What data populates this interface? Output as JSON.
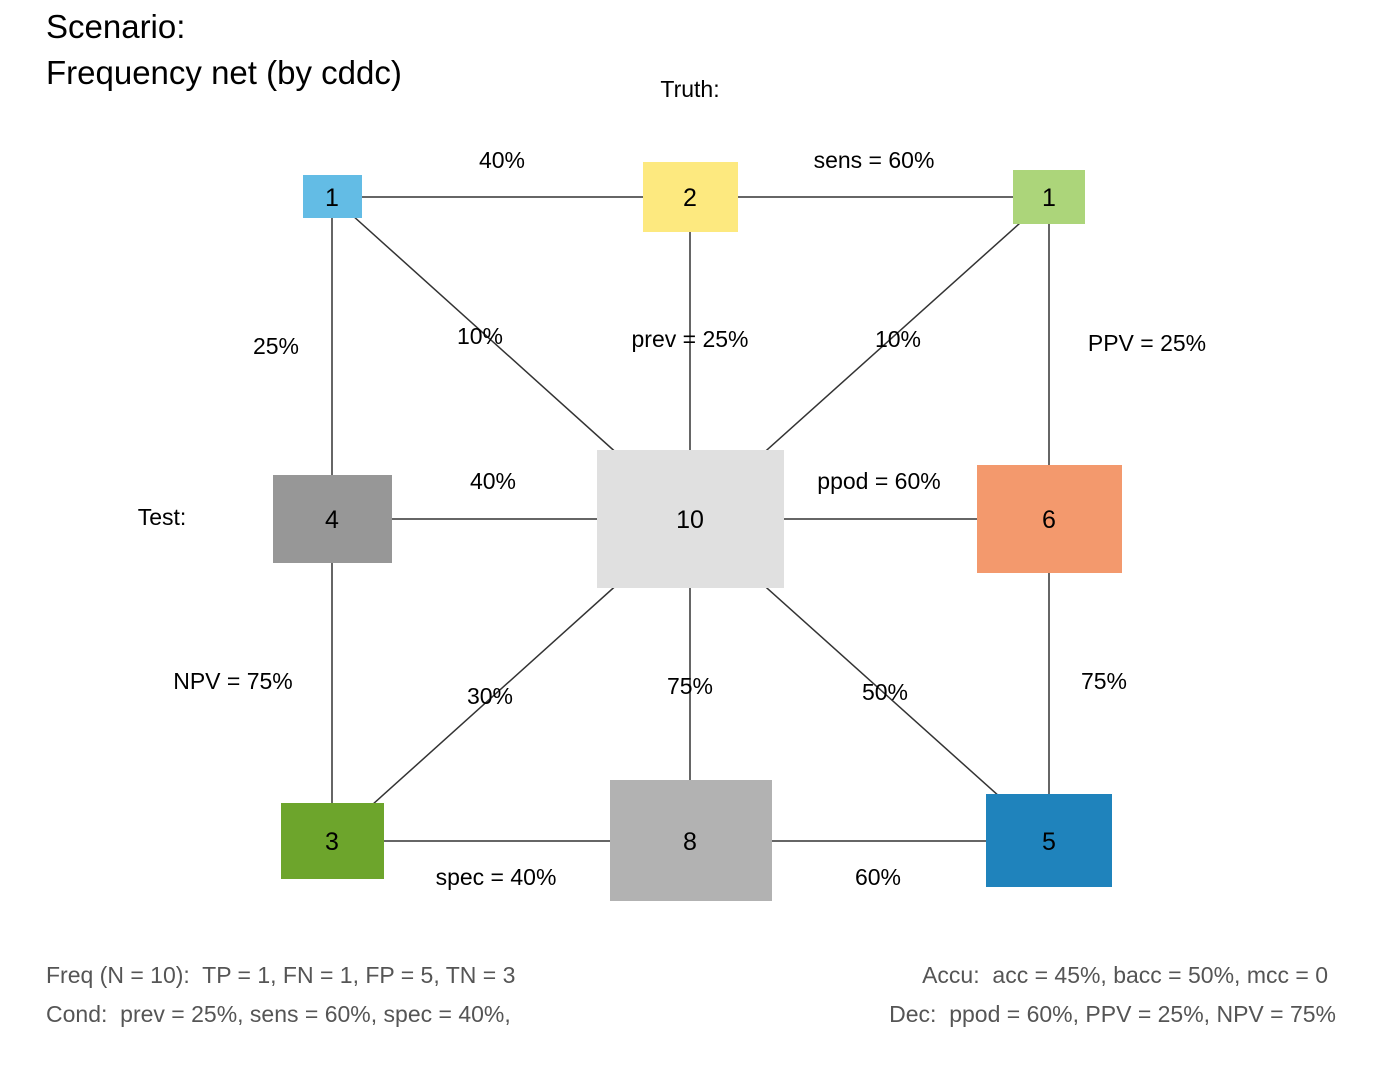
{
  "title": {
    "line1": "Scenario:",
    "line2": "Frequency net (by cddc)"
  },
  "axis_labels": {
    "truth": "Truth:",
    "test": "Test:"
  },
  "nodes": [
    {
      "id": "hi",
      "value": "1",
      "color": "#63bce5"
    },
    {
      "id": "cond-true",
      "value": "2",
      "color": "#fde97f"
    },
    {
      "id": "mi",
      "value": "1",
      "color": "#acd57a"
    },
    {
      "id": "dec-neg",
      "value": "4",
      "color": "#979797"
    },
    {
      "id": "N",
      "value": "10",
      "color": "#e0e0e0"
    },
    {
      "id": "dec-pos",
      "value": "6",
      "color": "#f3996d"
    },
    {
      "id": "cr",
      "value": "3",
      "color": "#6da52c"
    },
    {
      "id": "cond-false",
      "value": "8",
      "color": "#b2b2b2"
    },
    {
      "id": "fa",
      "value": "5",
      "color": "#1f83bc"
    }
  ],
  "edge_labels": {
    "top_left": "40%",
    "top_right": "sens = 60%",
    "left_upper": "25%",
    "diag_tl": "10%",
    "center_up": "prev = 25%",
    "diag_tr": "10%",
    "right_upper": "PPV = 25%",
    "mid_left": "40%",
    "mid_right": "ppod = 60%",
    "left_lower": "NPV = 75%",
    "diag_bl": "30%",
    "center_down": "75%",
    "diag_br": "50%",
    "right_lower": "75%",
    "bottom_left": "spec = 40%",
    "bottom_right": "60%"
  },
  "footer": {
    "freq": "Freq (N = 10):  TP = 1, FN = 1, FP = 5, TN = 3",
    "cond": "Cond:  prev = 25%, sens = 60%, spec = 40%,",
    "accu": "Accu:  acc = 45%, bacc = 50%, mcc = 0",
    "dec": "Dec:  ppod = 60%, PPV = 25%, NPV = 75%"
  },
  "line_color": "#333333"
}
